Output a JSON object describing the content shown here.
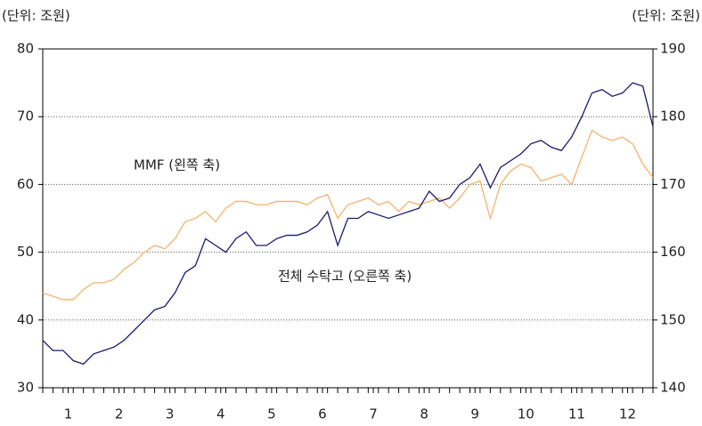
{
  "chart_data": {
    "type": "line",
    "unit_left": "(단위: 조원)",
    "unit_right": "(단위: 조원)",
    "annotations": [
      "MMF (왼쪽 축)",
      "전체 수탁고 (오른쪽 축)"
    ],
    "x": [
      0.5,
      0.7,
      0.9,
      1.1,
      1.3,
      1.5,
      1.7,
      1.9,
      2.1,
      2.3,
      2.5,
      2.7,
      2.9,
      3.1,
      3.3,
      3.5,
      3.7,
      3.9,
      4.1,
      4.3,
      4.5,
      4.7,
      4.9,
      5.1,
      5.3,
      5.5,
      5.7,
      5.9,
      6.1,
      6.3,
      6.5,
      6.7,
      6.9,
      7.1,
      7.3,
      7.5,
      7.7,
      7.9,
      8.1,
      8.3,
      8.5,
      8.7,
      8.9,
      9.1,
      9.3,
      9.5,
      9.7,
      9.9,
      10.1,
      10.3,
      10.5,
      10.7,
      10.9,
      11.1,
      11.3,
      11.5,
      11.7,
      11.9,
      12.1,
      12.3,
      12.5
    ],
    "xlim": [
      0.5,
      12.5
    ],
    "xticks": [
      {
        "value": 1,
        "label": "1"
      },
      {
        "value": 2,
        "label": "2"
      },
      {
        "value": 3,
        "label": "3"
      },
      {
        "value": 4,
        "label": "4"
      },
      {
        "value": 5,
        "label": "5"
      },
      {
        "value": 6,
        "label": "6"
      },
      {
        "value": 7,
        "label": "7"
      },
      {
        "value": 8,
        "label": "8"
      },
      {
        "value": 9,
        "label": "9"
      },
      {
        "value": 10,
        "label": "10"
      },
      {
        "value": 11,
        "label": "11"
      },
      {
        "value": 12,
        "label": "12"
      }
    ],
    "ylim": [
      30,
      80
    ],
    "yticks": [
      30,
      40,
      50,
      60,
      70,
      80
    ],
    "y2lim": [
      140,
      190
    ],
    "y2ticks": [
      140,
      150,
      160,
      170,
      180,
      190
    ],
    "grid": true,
    "series": [
      {
        "name": "MMF",
        "color": "#1a1a6e",
        "axis": "y",
        "values": [
          37,
          35.5,
          35.5,
          34,
          33.5,
          35,
          35.5,
          36,
          37,
          38.5,
          40,
          41.5,
          42,
          44,
          47,
          48,
          52,
          51,
          50,
          52,
          53,
          51,
          51,
          52,
          52.5,
          52.5,
          53,
          54,
          56,
          51,
          55,
          55,
          56,
          55.5,
          55,
          55.5,
          56,
          56.5,
          59,
          57.5,
          58,
          60,
          61,
          63,
          59.5,
          62.5,
          63.5,
          64.5,
          66,
          66.5,
          65.5,
          65,
          67,
          70,
          73.5,
          74,
          73,
          73.5,
          75,
          74.5,
          68.5
        ]
      },
      {
        "name": "전체 수탁고",
        "color": "#f5b26b",
        "axis": "y2",
        "values": [
          154,
          153.5,
          153,
          153,
          154.5,
          155.5,
          155.5,
          156,
          157.5,
          158.5,
          160,
          161,
          160.5,
          162,
          164.5,
          165,
          166,
          164.5,
          166.5,
          167.5,
          167.5,
          167,
          167,
          167.5,
          167.5,
          167.5,
          167,
          168,
          168.5,
          165,
          167,
          167.5,
          168,
          167,
          167.5,
          166,
          167.5,
          167,
          167.5,
          168,
          166.5,
          168,
          170,
          170.5,
          165,
          170,
          172,
          173,
          172.5,
          170.5,
          171,
          171.5,
          170,
          174,
          178,
          177,
          176.5,
          177,
          176,
          173,
          171
        ]
      }
    ]
  }
}
